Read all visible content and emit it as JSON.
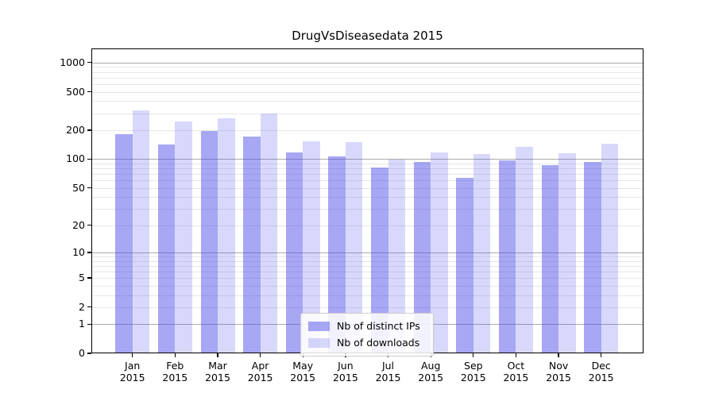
{
  "chart_data": {
    "type": "bar",
    "title": "DrugVsDiseasedata 2015",
    "xlabel": "",
    "ylabel": "",
    "yscale": "log1p",
    "ylim": [
      0,
      1400
    ],
    "yticks": [
      0,
      1,
      2,
      5,
      10,
      20,
      50,
      100,
      200,
      500,
      1000
    ],
    "grid": true,
    "legend_position": "lower center",
    "categories": [
      "Jan 2015",
      "Feb 2015",
      "Mar 2015",
      "Apr 2015",
      "May 2015",
      "Jun 2015",
      "Jul 2015",
      "Aug 2015",
      "Sep 2015",
      "Oct 2015",
      "Nov 2015",
      "Dec 2015"
    ],
    "series": [
      {
        "name": "Nb of distinct IPs",
        "key": "distinct-ips",
        "color": "rgba(72,72,232,0.48)",
        "values": [
          183,
          142,
          195,
          172,
          117,
          107,
          81,
          93,
          64,
          97,
          86,
          94
        ]
      },
      {
        "name": "Nb of downloads",
        "key": "downloads",
        "color": "rgba(72,72,232,0.21)",
        "values": [
          320,
          245,
          268,
          295,
          152,
          150,
          99,
          117,
          114,
          135,
          116,
          145
        ]
      }
    ]
  }
}
